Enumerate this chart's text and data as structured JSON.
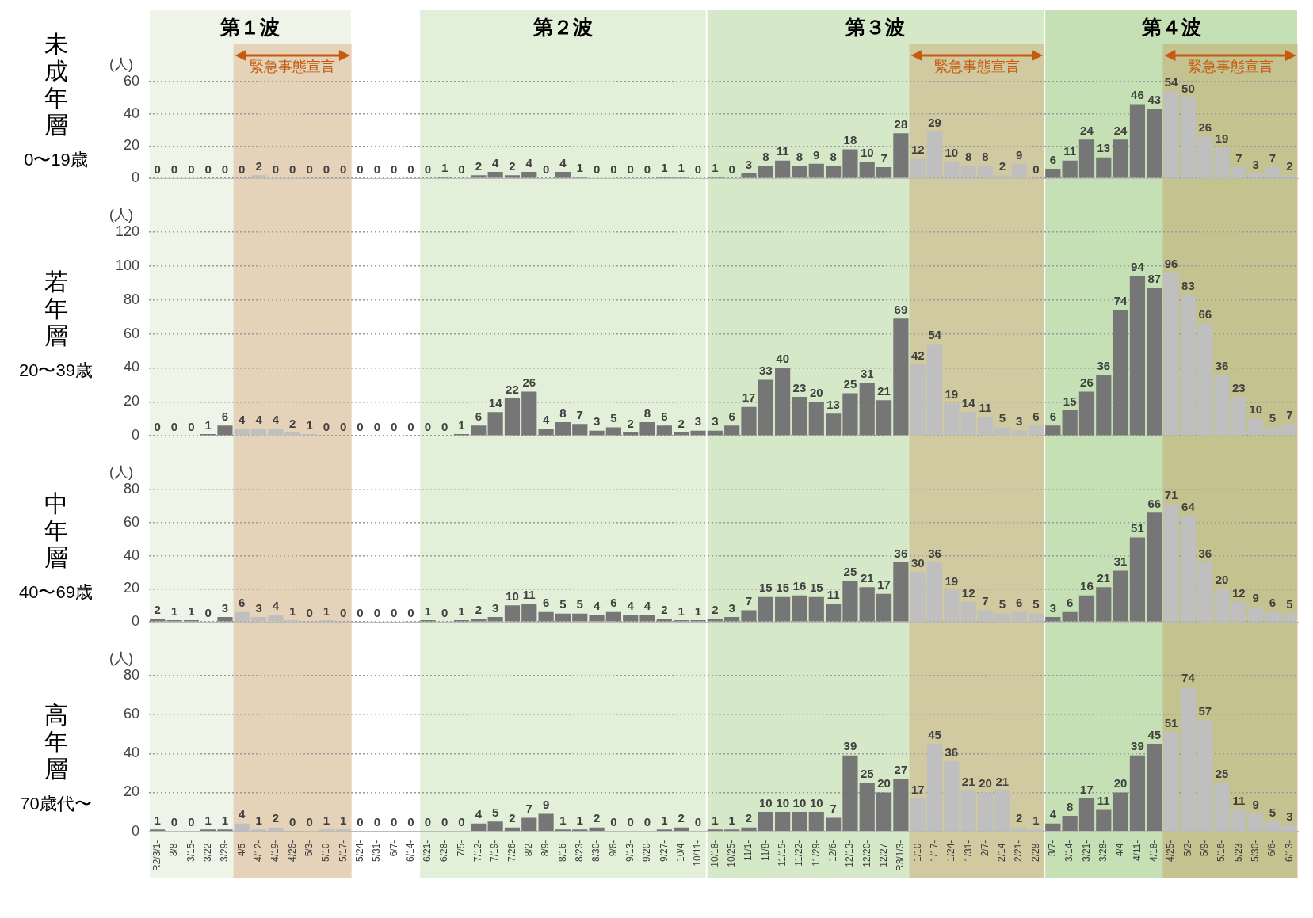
{
  "chart_data": [
    {
      "type": "bar",
      "title": "未成年層",
      "subtitle": "0〜19歳",
      "ylabel": "(人)",
      "categories": [
        "R2/3/1-",
        "3/8-",
        "3/15-",
        "3/22-",
        "3/29-",
        "4/5-",
        "4/12-",
        "4/19-",
        "4/26-",
        "5/3-",
        "5/10-",
        "5/17-",
        "5/24-",
        "5/31-",
        "6/7-",
        "6/14-",
        "6/21-",
        "6/28-",
        "7/5-",
        "7/12-",
        "7/19-",
        "7/26-",
        "8/2-",
        "8/9-",
        "8/16-",
        "8/23-",
        "8/30-",
        "9/6-",
        "9/13-",
        "9/20-",
        "9/27-",
        "10/4-",
        "10/11-",
        "10/18-",
        "10/25-",
        "11/1-",
        "11/8-",
        "11/15-",
        "11/22-",
        "11/29-",
        "12/6-",
        "12/13-",
        "12/20-",
        "12/27-",
        "R3/1/3-",
        "1/10-",
        "1/17-",
        "1/24-",
        "1/31-",
        "2/7-",
        "2/14-",
        "2/21-",
        "2/28-",
        "3/7-",
        "3/14-",
        "3/21-",
        "3/28-",
        "4/4-",
        "4/11-",
        "4/18-",
        "4/25-",
        "5/2-",
        "5/9-",
        "5/16-",
        "5/23-",
        "5/30-",
        "6/6-",
        "6/13-"
      ],
      "values": [
        0,
        0,
        0,
        0,
        0,
        0,
        2,
        0,
        0,
        0,
        0,
        0,
        0,
        0,
        0,
        0,
        0,
        1,
        0,
        2,
        4,
        2,
        4,
        0,
        4,
        1,
        0,
        0,
        0,
        0,
        1,
        1,
        0,
        1,
        0,
        3,
        8,
        11,
        8,
        9,
        8,
        18,
        10,
        7,
        28,
        12,
        29,
        10,
        8,
        8,
        2,
        9,
        0,
        6,
        11,
        24,
        13,
        24,
        46,
        43,
        54,
        50,
        26,
        19,
        7,
        3,
        7,
        2
      ],
      "colors": [
        "#767676",
        "#767676",
        "#767676",
        "#767676",
        "#767676",
        "#bfbfbf",
        "#bfbfbf",
        "#bfbfbf",
        "#bfbfbf",
        "#bfbfbf",
        "#bfbfbf",
        "#bfbfbf",
        "#767676",
        "#767676",
        "#767676",
        "#767676",
        "#767676",
        "#767676",
        "#767676",
        "#767676",
        "#767676",
        "#767676",
        "#767676",
        "#767676",
        "#767676",
        "#767676",
        "#767676",
        "#767676",
        "#767676",
        "#767676",
        "#767676",
        "#767676",
        "#767676",
        "#767676",
        "#767676",
        "#767676",
        "#767676",
        "#767676",
        "#767676",
        "#767676",
        "#767676",
        "#767676",
        "#767676",
        "#767676",
        "#767676",
        "#bfbfbf",
        "#bfbfbf",
        "#bfbfbf",
        "#bfbfbf",
        "#bfbfbf",
        "#bfbfbf",
        "#bfbfbf",
        "#bfbfbf",
        "#767676",
        "#767676",
        "#767676",
        "#767676",
        "#767676",
        "#767676",
        "#767676",
        "#bfbfbf",
        "#bfbfbf",
        "#bfbfbf",
        "#bfbfbf",
        "#bfbfbf",
        "#bfbfbf",
        "#bfbfbf",
        "#bfbfbf"
      ],
      "ylim": [
        0,
        60
      ],
      "yticks": [
        0,
        20,
        40,
        60
      ],
      "grid": "y",
      "data_labels": true,
      "tick_labels": "y",
      "bands": [
        {
          "axis": "x",
          "from": "R2/3/1-",
          "to": "5/17-",
          "label": "第１波",
          "color": "#eef5e8"
        },
        {
          "axis": "x",
          "from": "6/21-",
          "to": "10/11-",
          "label": "第２波",
          "color": "#e2efd9"
        },
        {
          "axis": "x",
          "from": "10/18-",
          "to": "2/28-",
          "label": "第３波",
          "color": "#d5e8c8"
        },
        {
          "axis": "x",
          "from": "3/7-",
          "to": "6/13-",
          "label": "第４波",
          "color": "#c5e0b4"
        },
        {
          "axis": "x",
          "from": "4/5-",
          "to": "5/17-",
          "label": "緊急事態宣言",
          "color": "#c55a11"
        },
        {
          "axis": "x",
          "from": "1/10-",
          "to": "2/28-",
          "label": "緊急事態宣言",
          "color": "#c55a11"
        },
        {
          "axis": "x",
          "from": "4/25-",
          "to": "6/13-",
          "label": "緊急事態宣言",
          "color": "#c55a11"
        }
      ]
    },
    {
      "type": "bar",
      "title": "若年層",
      "subtitle": "20〜39歳",
      "ylabel": "(人)",
      "categories": [
        "R2/3/1-",
        "3/8-",
        "3/15-",
        "3/22-",
        "3/29-",
        "4/5-",
        "4/12-",
        "4/19-",
        "4/26-",
        "5/3-",
        "5/10-",
        "5/17-",
        "5/24-",
        "5/31-",
        "6/7-",
        "6/14-",
        "6/21-",
        "6/28-",
        "7/5-",
        "7/12-",
        "7/19-",
        "7/26-",
        "8/2-",
        "8/9-",
        "8/16-",
        "8/23-",
        "8/30-",
        "9/6-",
        "9/13-",
        "9/20-",
        "9/27-",
        "10/4-",
        "10/11-",
        "10/18-",
        "10/25-",
        "11/1-",
        "11/8-",
        "11/15-",
        "11/22-",
        "11/29-",
        "12/6-",
        "12/13-",
        "12/20-",
        "12/27-",
        "R3/1/3-",
        "1/10-",
        "1/17-",
        "1/24-",
        "1/31-",
        "2/7-",
        "2/14-",
        "2/21-",
        "2/28-",
        "3/7-",
        "3/14-",
        "3/21-",
        "3/28-",
        "4/4-",
        "4/11-",
        "4/18-",
        "4/25-",
        "5/2-",
        "5/9-",
        "5/16-",
        "5/23-",
        "5/30-",
        "6/6-",
        "6/13-"
      ],
      "values": [
        0,
        0,
        0,
        1,
        6,
        4,
        4,
        4,
        2,
        1,
        0,
        0,
        0,
        0,
        0,
        0,
        0,
        0,
        1,
        6,
        14,
        22,
        26,
        4,
        8,
        7,
        3,
        5,
        2,
        8,
        6,
        2,
        3,
        3,
        6,
        17,
        33,
        40,
        23,
        20,
        13,
        25,
        31,
        21,
        69,
        42,
        54,
        19,
        14,
        11,
        5,
        3,
        6,
        6,
        15,
        26,
        36,
        74,
        94,
        87,
        96,
        83,
        66,
        36,
        23,
        10,
        5,
        7
      ],
      "colors": [
        "#767676",
        "#767676",
        "#767676",
        "#767676",
        "#767676",
        "#bfbfbf",
        "#bfbfbf",
        "#bfbfbf",
        "#bfbfbf",
        "#bfbfbf",
        "#bfbfbf",
        "#bfbfbf",
        "#767676",
        "#767676",
        "#767676",
        "#767676",
        "#767676",
        "#767676",
        "#767676",
        "#767676",
        "#767676",
        "#767676",
        "#767676",
        "#767676",
        "#767676",
        "#767676",
        "#767676",
        "#767676",
        "#767676",
        "#767676",
        "#767676",
        "#767676",
        "#767676",
        "#767676",
        "#767676",
        "#767676",
        "#767676",
        "#767676",
        "#767676",
        "#767676",
        "#767676",
        "#767676",
        "#767676",
        "#767676",
        "#767676",
        "#bfbfbf",
        "#bfbfbf",
        "#bfbfbf",
        "#bfbfbf",
        "#bfbfbf",
        "#bfbfbf",
        "#bfbfbf",
        "#bfbfbf",
        "#767676",
        "#767676",
        "#767676",
        "#767676",
        "#767676",
        "#767676",
        "#767676",
        "#bfbfbf",
        "#bfbfbf",
        "#bfbfbf",
        "#bfbfbf",
        "#bfbfbf",
        "#bfbfbf",
        "#bfbfbf",
        "#bfbfbf"
      ],
      "ylim": [
        0,
        120
      ],
      "yticks": [
        0,
        20,
        40,
        60,
        80,
        100,
        120
      ],
      "grid": "y",
      "data_labels": true,
      "tick_labels": "y",
      "bands": [
        {
          "axis": "x",
          "from": "R2/3/1-",
          "to": "5/17-",
          "color": "#eef5e8"
        },
        {
          "axis": "x",
          "from": "6/21-",
          "to": "10/11-",
          "color": "#e2efd9"
        },
        {
          "axis": "x",
          "from": "10/18-",
          "to": "2/28-",
          "color": "#d5e8c8"
        },
        {
          "axis": "x",
          "from": "3/7-",
          "to": "6/13-",
          "color": "#c5e0b4"
        },
        {
          "axis": "x",
          "from": "4/5-",
          "to": "5/17-",
          "color": "#c55a11"
        },
        {
          "axis": "x",
          "from": "1/10-",
          "to": "2/28-",
          "color": "#c55a11"
        },
        {
          "axis": "x",
          "from": "4/25-",
          "to": "6/13-",
          "color": "#c55a11"
        }
      ]
    },
    {
      "type": "bar",
      "title": "中年層",
      "subtitle": "40〜69歳",
      "ylabel": "(人)",
      "categories": [
        "R2/3/1-",
        "3/8-",
        "3/15-",
        "3/22-",
        "3/29-",
        "4/5-",
        "4/12-",
        "4/19-",
        "4/26-",
        "5/3-",
        "5/10-",
        "5/17-",
        "5/24-",
        "5/31-",
        "6/7-",
        "6/14-",
        "6/21-",
        "6/28-",
        "7/5-",
        "7/12-",
        "7/19-",
        "7/26-",
        "8/2-",
        "8/9-",
        "8/16-",
        "8/23-",
        "8/30-",
        "9/6-",
        "9/13-",
        "9/20-",
        "9/27-",
        "10/4-",
        "10/11-",
        "10/18-",
        "10/25-",
        "11/1-",
        "11/8-",
        "11/15-",
        "11/22-",
        "11/29-",
        "12/6-",
        "12/13-",
        "12/20-",
        "12/27-",
        "R3/1/3-",
        "1/10-",
        "1/17-",
        "1/24-",
        "1/31-",
        "2/7-",
        "2/14-",
        "2/21-",
        "2/28-",
        "3/7-",
        "3/14-",
        "3/21-",
        "3/28-",
        "4/4-",
        "4/11-",
        "4/18-",
        "4/25-",
        "5/2-",
        "5/9-",
        "5/16-",
        "5/23-",
        "5/30-",
        "6/6-",
        "6/13-"
      ],
      "values": [
        2,
        1,
        1,
        0,
        3,
        6,
        3,
        4,
        1,
        0,
        1,
        0,
        0,
        0,
        0,
        0,
        1,
        0,
        1,
        2,
        3,
        10,
        11,
        6,
        5,
        5,
        4,
        6,
        4,
        4,
        2,
        1,
        1,
        2,
        3,
        7,
        15,
        15,
        16,
        15,
        11,
        25,
        21,
        17,
        36,
        30,
        36,
        19,
        12,
        7,
        5,
        6,
        5,
        3,
        6,
        16,
        21,
        31,
        51,
        66,
        71,
        64,
        36,
        20,
        12,
        9,
        6,
        5
      ],
      "colors": [
        "#767676",
        "#767676",
        "#767676",
        "#767676",
        "#767676",
        "#bfbfbf",
        "#bfbfbf",
        "#bfbfbf",
        "#bfbfbf",
        "#bfbfbf",
        "#bfbfbf",
        "#bfbfbf",
        "#767676",
        "#767676",
        "#767676",
        "#767676",
        "#767676",
        "#767676",
        "#767676",
        "#767676",
        "#767676",
        "#767676",
        "#767676",
        "#767676",
        "#767676",
        "#767676",
        "#767676",
        "#767676",
        "#767676",
        "#767676",
        "#767676",
        "#767676",
        "#767676",
        "#767676",
        "#767676",
        "#767676",
        "#767676",
        "#767676",
        "#767676",
        "#767676",
        "#767676",
        "#767676",
        "#767676",
        "#767676",
        "#767676",
        "#bfbfbf",
        "#bfbfbf",
        "#bfbfbf",
        "#bfbfbf",
        "#bfbfbf",
        "#bfbfbf",
        "#bfbfbf",
        "#bfbfbf",
        "#767676",
        "#767676",
        "#767676",
        "#767676",
        "#767676",
        "#767676",
        "#767676",
        "#bfbfbf",
        "#bfbfbf",
        "#bfbfbf",
        "#bfbfbf",
        "#bfbfbf",
        "#bfbfbf",
        "#bfbfbf",
        "#bfbfbf"
      ],
      "ylim": [
        0,
        80
      ],
      "yticks": [
        0,
        20,
        40,
        60,
        80
      ],
      "grid": "y",
      "data_labels": true,
      "tick_labels": "y",
      "bands": [
        {
          "axis": "x",
          "from": "R2/3/1-",
          "to": "5/17-",
          "color": "#eef5e8"
        },
        {
          "axis": "x",
          "from": "6/21-",
          "to": "10/11-",
          "color": "#e2efd9"
        },
        {
          "axis": "x",
          "from": "10/18-",
          "to": "2/28-",
          "color": "#d5e8c8"
        },
        {
          "axis": "x",
          "from": "3/7-",
          "to": "6/13-",
          "color": "#c5e0b4"
        },
        {
          "axis": "x",
          "from": "4/5-",
          "to": "5/17-",
          "color": "#c55a11"
        },
        {
          "axis": "x",
          "from": "1/10-",
          "to": "2/28-",
          "color": "#c55a11"
        },
        {
          "axis": "x",
          "from": "4/25-",
          "to": "6/13-",
          "color": "#c55a11"
        }
      ]
    },
    {
      "type": "bar",
      "title": "高年層",
      "subtitle": "70歳代〜",
      "ylabel": "(人)",
      "categories": [
        "R2/3/1-",
        "3/8-",
        "3/15-",
        "3/22-",
        "3/29-",
        "4/5-",
        "4/12-",
        "4/19-",
        "4/26-",
        "5/3-",
        "5/10-",
        "5/17-",
        "5/24-",
        "5/31-",
        "6/7-",
        "6/14-",
        "6/21-",
        "6/28-",
        "7/5-",
        "7/12-",
        "7/19-",
        "7/26-",
        "8/2-",
        "8/9-",
        "8/16-",
        "8/23-",
        "8/30-",
        "9/6-",
        "9/13-",
        "9/20-",
        "9/27-",
        "10/4-",
        "10/11-",
        "10/18-",
        "10/25-",
        "11/1-",
        "11/8-",
        "11/15-",
        "11/22-",
        "11/29-",
        "12/6-",
        "12/13-",
        "12/20-",
        "12/27-",
        "R3/1/3-",
        "1/10-",
        "1/17-",
        "1/24-",
        "1/31-",
        "2/7-",
        "2/14-",
        "2/21-",
        "2/28-",
        "3/7-",
        "3/14-",
        "3/21-",
        "3/28-",
        "4/4-",
        "4/11-",
        "4/18-",
        "4/25-",
        "5/2-",
        "5/9-",
        "5/16-",
        "5/23-",
        "5/30-",
        "6/6-",
        "6/13-"
      ],
      "values": [
        1,
        0,
        0,
        1,
        1,
        4,
        1,
        2,
        0,
        0,
        1,
        1,
        0,
        0,
        0,
        0,
        0,
        0,
        0,
        4,
        5,
        2,
        7,
        9,
        1,
        1,
        2,
        0,
        0,
        0,
        1,
        2,
        0,
        1,
        1,
        2,
        10,
        10,
        10,
        10,
        7,
        39,
        25,
        20,
        27,
        17,
        45,
        36,
        21,
        20,
        21,
        2,
        1,
        4,
        8,
        17,
        11,
        20,
        39,
        45,
        51,
        74,
        57,
        25,
        11,
        9,
        5,
        3
      ],
      "colors": [
        "#767676",
        "#767676",
        "#767676",
        "#767676",
        "#767676",
        "#bfbfbf",
        "#bfbfbf",
        "#bfbfbf",
        "#bfbfbf",
        "#bfbfbf",
        "#bfbfbf",
        "#bfbfbf",
        "#767676",
        "#767676",
        "#767676",
        "#767676",
        "#767676",
        "#767676",
        "#767676",
        "#767676",
        "#767676",
        "#767676",
        "#767676",
        "#767676",
        "#767676",
        "#767676",
        "#767676",
        "#767676",
        "#767676",
        "#767676",
        "#767676",
        "#767676",
        "#767676",
        "#767676",
        "#767676",
        "#767676",
        "#767676",
        "#767676",
        "#767676",
        "#767676",
        "#767676",
        "#767676",
        "#767676",
        "#767676",
        "#767676",
        "#bfbfbf",
        "#bfbfbf",
        "#bfbfbf",
        "#bfbfbf",
        "#bfbfbf",
        "#bfbfbf",
        "#bfbfbf",
        "#bfbfbf",
        "#767676",
        "#767676",
        "#767676",
        "#767676",
        "#767676",
        "#767676",
        "#767676",
        "#bfbfbf",
        "#bfbfbf",
        "#bfbfbf",
        "#bfbfbf",
        "#bfbfbf",
        "#bfbfbf",
        "#bfbfbf",
        "#bfbfbf"
      ],
      "ylim": [
        0,
        80
      ],
      "yticks": [
        0,
        20,
        40,
        60,
        80
      ],
      "grid": "y",
      "data_labels": true,
      "bands": [
        {
          "axis": "x",
          "from": "R2/3/1-",
          "to": "5/17-",
          "color": "#eef5e8"
        },
        {
          "axis": "x",
          "from": "6/21-",
          "to": "10/11-",
          "color": "#e2efd9"
        },
        {
          "axis": "x",
          "from": "10/18-",
          "to": "2/28-",
          "color": "#d5e8c8"
        },
        {
          "axis": "x",
          "from": "3/7-",
          "to": "6/13-",
          "color": "#c5e0b4"
        },
        {
          "axis": "x",
          "from": "4/5-",
          "to": "5/17-",
          "color": "#c55a11"
        },
        {
          "axis": "x",
          "from": "1/10-",
          "to": "2/28-",
          "color": "#c55a11"
        },
        {
          "axis": "x",
          "from": "4/25-",
          "to": "6/13-",
          "color": "#c55a11"
        }
      ]
    }
  ]
}
